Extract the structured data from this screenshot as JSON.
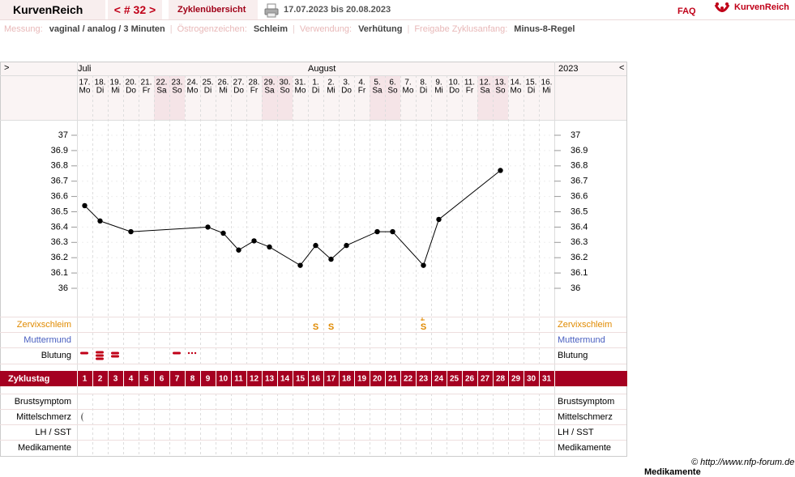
{
  "header": {
    "brand": "KurvenReich",
    "cycle": "< # 32 >",
    "overview": "Zyklenübersicht",
    "range": "17.07.2023 bis 20.08.2023",
    "faq": "FAQ",
    "logo": "KurvenReich"
  },
  "info": {
    "separator": "|",
    "items": [
      {
        "label": "Messung:",
        "value": "vaginal / analog / 3 Minuten"
      },
      {
        "label": "Östrogenzeichen:",
        "value": "Schleim"
      },
      {
        "label": "Verwendung:",
        "value": "Verhütung"
      },
      {
        "label": "Freigabe Zyklusanfang:",
        "value": "Minus-8-Regel"
      }
    ]
  },
  "nav": {
    "left": ">",
    "right": "<",
    "year": "2023",
    "month1": "Juli",
    "month2": "August"
  },
  "days": {
    "dates": [
      "17.",
      "18.",
      "19.",
      "20.",
      "21.",
      "22.",
      "23.",
      "24.",
      "25.",
      "26.",
      "27.",
      "28.",
      "29.",
      "30.",
      "31.",
      "1.",
      "2.",
      "3.",
      "4.",
      "5.",
      "6.",
      "7.",
      "8.",
      "9.",
      "10.",
      "11.",
      "12.",
      "13.",
      "14.",
      "15.",
      "16."
    ],
    "weekdays": [
      "Mo",
      "Di",
      "Mi",
      "Do",
      "Fr",
      "Sa",
      "So",
      "Mo",
      "Di",
      "Mi",
      "Do",
      "Fr",
      "Sa",
      "So",
      "Mo",
      "Di",
      "Mi",
      "Do",
      "Fr",
      "Sa",
      "So",
      "Mo",
      "Di",
      "Mi",
      "Do",
      "Fr",
      "Sa",
      "So",
      "Mo",
      "Di",
      "Mi"
    ],
    "cycle_label": "Zyklustag",
    "cycle_days": [
      1,
      2,
      3,
      4,
      5,
      6,
      7,
      8,
      9,
      10,
      11,
      12,
      13,
      14,
      15,
      16,
      17,
      18,
      19,
      20,
      21,
      22,
      23,
      24,
      25,
      26,
      27,
      28,
      29,
      30,
      31
    ]
  },
  "chart_data": {
    "type": "line",
    "x": [
      1,
      2,
      4,
      9,
      10,
      11,
      12,
      13,
      15,
      16,
      17,
      18,
      20,
      21,
      23,
      24,
      28
    ],
    "values": [
      36.54,
      36.44,
      36.37,
      36.4,
      36.36,
      36.25,
      36.31,
      36.27,
      36.15,
      36.28,
      36.19,
      36.28,
      36.37,
      36.37,
      36.15,
      36.45,
      36.77
    ],
    "color": "#000000",
    "xlim": [
      0.5,
      31.5
    ],
    "ylim": [
      36,
      37
    ],
    "yticks": [
      36,
      36.1,
      36.2,
      36.3,
      36.4,
      36.5,
      36.6,
      36.7,
      36.8,
      36.9,
      37
    ]
  },
  "rows": {
    "cervix": "Zervixschleim",
    "cervix_marks": [
      null,
      null,
      null,
      null,
      null,
      null,
      null,
      null,
      null,
      null,
      null,
      null,
      null,
      null,
      null,
      "S",
      "S",
      null,
      null,
      null,
      null,
      null,
      "S",
      null,
      null,
      null,
      null,
      null,
      null,
      null,
      null
    ],
    "os": "Muttermund",
    "bleeding": "Blutung",
    "breast": "Brustsymptom",
    "pain": "Mittelschmerz",
    "lh": "LH / SST",
    "meds": "Medikamente"
  },
  "footer": {
    "copyright": "© http://www.nfp-forum.de",
    "cut": "Medikamente"
  }
}
